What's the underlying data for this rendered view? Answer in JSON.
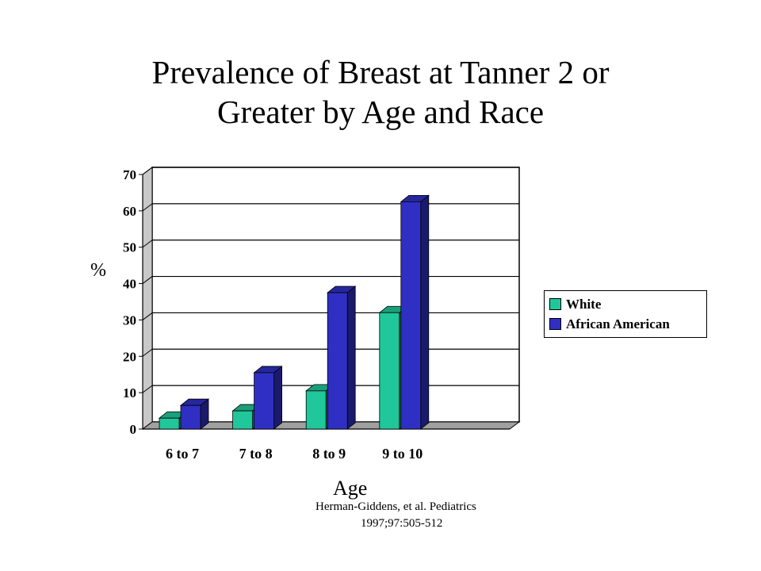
{
  "chart_data": {
    "type": "bar",
    "title_lines": [
      "Prevalence of Breast at Tanner 2 or",
      "Greater by Age and Race"
    ],
    "xlabel": "Age",
    "ylabel": "%",
    "categories": [
      "6 to 7",
      "7 to 8",
      "8 to 9",
      "9 to 10"
    ],
    "series": [
      {
        "name": "White",
        "values": [
          3,
          5,
          10.5,
          32
        ],
        "color": "#20c79a"
      },
      {
        "name": "African American",
        "values": [
          6.5,
          15.5,
          37.5,
          62.5
        ],
        "color": "#2f2fc4"
      }
    ],
    "ylim": [
      0,
      70
    ],
    "yticks": [
      0,
      10,
      20,
      30,
      40,
      50,
      60,
      70
    ],
    "grid": true,
    "legend_position": "right",
    "bar_style": "3d"
  },
  "source": {
    "line1": "Herman-Giddens, et al. Pediatrics",
    "line2": "1997;97:505-512"
  }
}
